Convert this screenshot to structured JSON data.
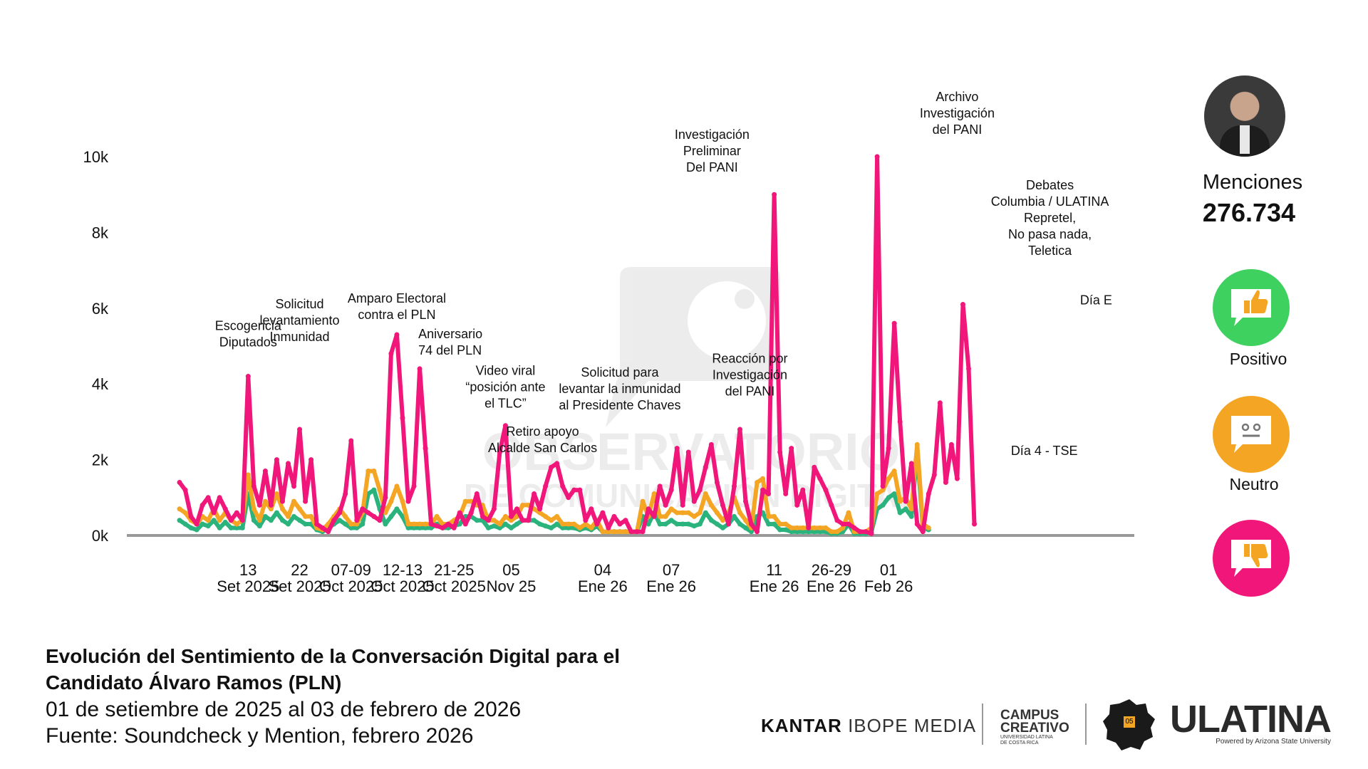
{
  "chart_data": {
    "type": "line",
    "yticks": [
      {
        "value": 0,
        "label": "0k"
      },
      {
        "value": 2000,
        "label": "2k"
      },
      {
        "value": 4000,
        "label": "4k"
      },
      {
        "value": 6000,
        "label": "6k"
      },
      {
        "value": 8000,
        "label": "8k"
      },
      {
        "value": 10000,
        "label": "10k"
      }
    ],
    "ylim": [
      0,
      10000
    ],
    "xlim": [
      0,
      158
    ],
    "xticks": [
      {
        "x": 12,
        "lines": [
          "13",
          "Set 2025"
        ]
      },
      {
        "x": 21,
        "lines": [
          "22",
          "Set 2025"
        ]
      },
      {
        "x": 30,
        "lines": [
          "07-09",
          "Oct 2025"
        ]
      },
      {
        "x": 39,
        "lines": [
          "12-13",
          "Oct 2025"
        ]
      },
      {
        "x": 48,
        "lines": [
          "21-25",
          "Oct 2025"
        ]
      },
      {
        "x": 58,
        "lines": [
          "05",
          "Nov 25"
        ]
      },
      {
        "x": 74,
        "lines": [
          "04",
          "Ene 26"
        ]
      },
      {
        "x": 86,
        "lines": [
          "07",
          "Ene 26"
        ]
      },
      {
        "x": 104,
        "lines": [
          "11",
          "Ene 26"
        ]
      },
      {
        "x": 114,
        "lines": [
          "26-29",
          "Ene 26"
        ]
      },
      {
        "x": 124,
        "lines": [
          "01",
          "Feb 26"
        ]
      }
    ],
    "series": [
      {
        "name": "Positivo",
        "color": "#2bb37d",
        "values": [
          400,
          300,
          200,
          150,
          300,
          250,
          400,
          200,
          350,
          200,
          200,
          200,
          1100,
          400,
          250,
          500,
          400,
          600,
          400,
          300,
          500,
          400,
          300,
          300,
          150,
          100,
          200,
          300,
          400,
          300,
          200,
          200,
          300,
          1100,
          1200,
          700,
          300,
          500,
          700,
          500,
          200,
          200,
          200,
          200,
          200,
          300,
          200,
          200,
          250,
          300,
          500,
          500,
          400,
          400,
          200,
          250,
          200,
          300,
          200,
          300,
          400,
          400,
          400,
          300,
          250,
          200,
          300,
          200,
          200,
          200,
          150,
          200,
          150,
          250,
          100,
          100,
          100,
          100,
          100,
          100,
          100,
          500,
          300,
          600,
          300,
          300,
          400,
          300,
          300,
          300,
          250,
          300,
          600,
          400,
          300,
          200,
          300,
          500,
          300,
          200,
          100,
          500,
          600,
          300,
          300,
          150,
          150,
          100,
          100,
          100,
          100,
          100,
          100,
          100,
          50,
          50,
          100,
          300,
          50,
          50,
          50,
          100,
          700,
          800,
          1000,
          1100,
          600,
          700,
          500,
          2200,
          200,
          150
        ]
      },
      {
        "name": "Neutro",
        "color": "#f4a524",
        "values": [
          700,
          600,
          400,
          300,
          500,
          400,
          700,
          400,
          600,
          400,
          300,
          400,
          1600,
          700,
          400,
          900,
          700,
          1100,
          700,
          500,
          900,
          700,
          500,
          500,
          200,
          150,
          300,
          500,
          700,
          500,
          300,
          300,
          600,
          1700,
          1700,
          1200,
          600,
          900,
          1300,
          900,
          300,
          300,
          300,
          300,
          300,
          500,
          300,
          300,
          400,
          500,
          900,
          900,
          800,
          800,
          400,
          400,
          300,
          500,
          400,
          500,
          800,
          800,
          700,
          600,
          500,
          400,
          500,
          300,
          300,
          300,
          200,
          300,
          200,
          400,
          100,
          100,
          100,
          100,
          100,
          100,
          100,
          900,
          500,
          1100,
          500,
          500,
          700,
          600,
          600,
          600,
          500,
          600,
          1100,
          800,
          600,
          400,
          600,
          1000,
          600,
          400,
          200,
          1400,
          1500,
          500,
          500,
          300,
          300,
          200,
          200,
          200,
          200,
          200,
          200,
          200,
          100,
          100,
          200,
          600,
          100,
          100,
          100,
          200,
          1100,
          1200,
          1500,
          1700,
          900,
          1000,
          700,
          2400,
          300,
          200
        ]
      },
      {
        "name": "Negativo",
        "color": "#f0167a",
        "values": [
          1400,
          1200,
          500,
          300,
          800,
          1000,
          600,
          1000,
          700,
          400,
          600,
          400,
          4200,
          1300,
          800,
          1700,
          800,
          2000,
          900,
          1900,
          1300,
          2800,
          900,
          2000,
          300,
          200,
          100,
          400,
          600,
          1100,
          2500,
          400,
          700,
          600,
          500,
          400,
          1000,
          4800,
          5300,
          3100,
          900,
          1300,
          4400,
          2300,
          300,
          250,
          200,
          300,
          200,
          600,
          300,
          600,
          1100,
          500,
          400,
          700,
          2200,
          2900,
          500,
          700,
          400,
          400,
          1100,
          700,
          1300,
          1800,
          1900,
          1300,
          1000,
          1200,
          1200,
          400,
          700,
          300,
          600,
          200,
          500,
          300,
          400,
          100,
          100,
          100,
          700,
          500,
          1300,
          800,
          1200,
          2300,
          800,
          2200,
          900,
          1200,
          1800,
          2400,
          1400,
          800,
          300,
          1300,
          2800,
          900,
          300,
          100,
          1200,
          1100,
          9000,
          2200,
          1100,
          2300,
          800,
          1200,
          200,
          1800,
          1500,
          1200,
          800,
          400,
          300,
          300,
          200,
          100,
          100,
          50,
          10000,
          1300,
          2300,
          5600,
          3000,
          900,
          1900,
          300,
          100,
          1100,
          1600,
          3500,
          1400,
          2400,
          1500,
          6100,
          4400,
          300
        ]
      }
    ],
    "annotations": [
      {
        "x": 12,
        "y": 4200,
        "lines": [
          "Escogencia",
          "Diputados"
        ],
        "anchor": "middle",
        "dx": 0,
        "lift": 42
      },
      {
        "x": 21,
        "y": 2800,
        "lines": [
          "Solicitud",
          "levantamiento",
          "Inmunidad"
        ],
        "anchor": "middle",
        "dx": 0,
        "lift": 124
      },
      {
        "x": 38,
        "y": 5300,
        "lines": [
          "Amparo Electoral",
          "contra el PLN"
        ],
        "anchor": "middle",
        "dx": 0,
        "lift": 22
      },
      {
        "x": 42,
        "y": 4400,
        "lines": [
          "Aniversario",
          "74 del PLN"
        ],
        "anchor": "start",
        "dx": -2,
        "lift": 20
      },
      {
        "x": 57,
        "y": 2900,
        "lines": [
          "Video viral",
          "“posición ante",
          "el TLC”"
        ],
        "anchor": "middle",
        "dx": 0,
        "lift": 25
      },
      {
        "x": 62,
        "y": 1900,
        "lines": [
          "Retiro apoyo",
          "Alcalde San Carlos"
        ],
        "anchor": "middle",
        "dx": 12,
        "lift": 16
      },
      {
        "x": 78,
        "y": 2800,
        "lines": [
          "Solicitud para",
          "levantar la inmunidad",
          "al Presidente Chaves"
        ],
        "anchor": "middle",
        "dx": -8,
        "lift": 28
      },
      {
        "x": 94,
        "y": 9000,
        "lines": [
          "Investigación",
          "Preliminar",
          "Del PANI"
        ],
        "anchor": "middle",
        "dx": -7,
        "lift": 32
      },
      {
        "x": 96,
        "y": 2300,
        "lines": [
          "Reacción por",
          "Investigación",
          "del PANI"
        ],
        "anchor": "middle",
        "dx": 30,
        "lift": 74
      },
      {
        "x": 136,
        "y": 10000,
        "lines": [
          "Archivo",
          "Investigación",
          "del PANI"
        ],
        "anchor": "middle",
        "dx": 0,
        "lift": 32
      },
      {
        "x": 145,
        "y": 1900,
        "lines": [
          "Día 4 - TSE"
        ],
        "anchor": "middle",
        "dx": 50,
        "lift": 12
      },
      {
        "x": 141,
        "y": 5600,
        "lines": [
          "Debates",
          "Columbia / ULATINA",
          "Repretel,",
          "No pasa nada,",
          "Teletica"
        ],
        "anchor": "middle",
        "dx": 90,
        "lift": 96
      },
      {
        "x": 155,
        "y": 6100,
        "lines": [
          "Día E"
        ],
        "anchor": "start",
        "dx": 20,
        "lift": 0
      }
    ]
  },
  "sidebar": {
    "mentions_label": "Menciones",
    "mentions_value": "276.734",
    "legend": [
      {
        "label": "Positivo",
        "color": "#3ed160"
      },
      {
        "label": "Neutro",
        "color": "#f4a524"
      },
      {
        "label": "",
        "color": "#f0167a"
      }
    ]
  },
  "caption": {
    "title_line1": "Evolución del Sentimiento de la Conversación Digital para el",
    "title_line2": "Candidato Álvaro Ramos (PLN)",
    "date_range": "01 de setiembre de 2025 al 03 de febrero de 2026",
    "source": "Fuente: Soundcheck y Mention, febrero 2026"
  },
  "footer": {
    "kantar": "KANTAR",
    "ibope": "IBOPE MEDIA",
    "campus_line1": "CAMPUS",
    "campus_line2": "CREATIVO",
    "campus_sub1": "UNIVERSIDAD LATINA",
    "campus_sub2": "DE COSTA RICA",
    "badge_text": "05",
    "ulatina": "ULATINA",
    "ulatina_sub": "Powered by Arizona State University"
  },
  "watermark": {
    "line1": "OBSERVATORIO",
    "line2": "DE COMUNICACIÓN DIGITAL"
  }
}
